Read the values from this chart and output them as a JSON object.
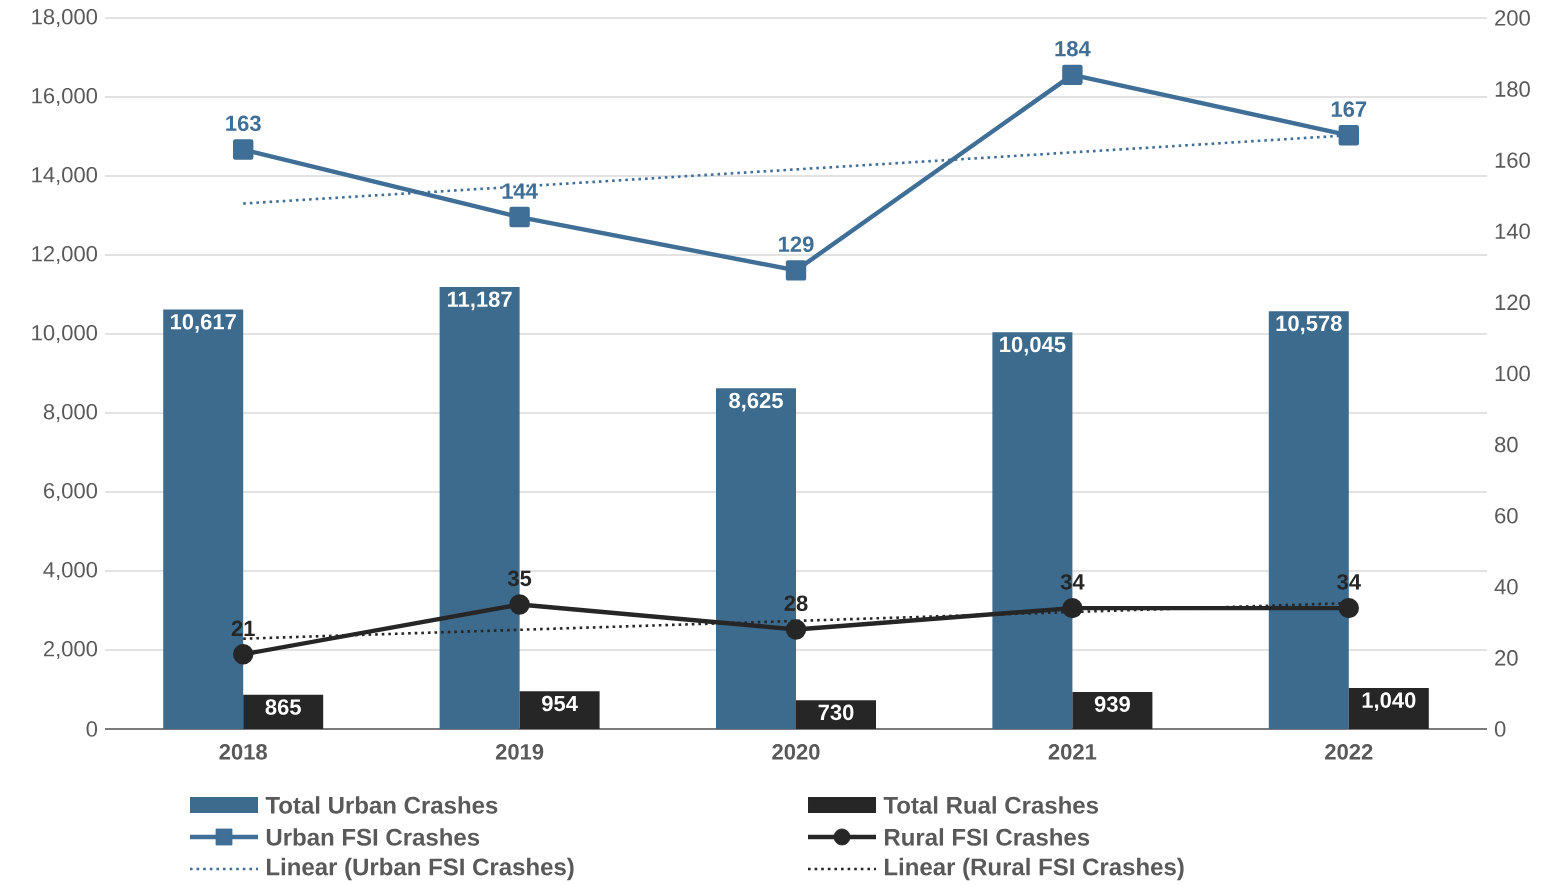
{
  "chart_data": {
    "type": "bar",
    "categories": [
      "2018",
      "2019",
      "2020",
      "2021",
      "2022"
    ],
    "series": [
      {
        "name": "Total Urban Crashes",
        "color": "#3d6b8e",
        "values": [
          10617,
          11187,
          8625,
          10045,
          10578
        ],
        "value_labels": [
          "10,617",
          "11,187",
          "8,625",
          "10,045",
          "10,578"
        ]
      },
      {
        "name": "Total Rual Crashes",
        "color": "#262626",
        "values": [
          865,
          954,
          730,
          939,
          1040
        ],
        "value_labels": [
          "865",
          "954",
          "730",
          "939",
          "1,040"
        ]
      },
      {
        "name": "Urban FSI Crashes",
        "type": "line",
        "axis": "y2",
        "color": "#3f6e96",
        "marker": "square",
        "values": [
          163,
          144,
          129,
          184,
          167
        ],
        "data_labels": true
      },
      {
        "name": "Rural FSI Crashes",
        "type": "line",
        "axis": "y2",
        "color": "#262626",
        "marker": "circle",
        "values": [
          21,
          35,
          28,
          34,
          34
        ],
        "data_labels": true
      },
      {
        "name": "Linear (Urban FSI Crashes)",
        "type": "line",
        "axis": "y2",
        "color": "#3f6e96",
        "marker": "none",
        "line_style": "dotted",
        "values": [
          147.8,
          152.6,
          157.4,
          162.2,
          167
        ]
      },
      {
        "name": "Linear (Rural FSI Crashes)",
        "type": "line",
        "axis": "y2",
        "color": "#262626",
        "marker": "none",
        "line_style": "dotted",
        "values": [
          25.4,
          27.9,
          30.4,
          32.9,
          35.4
        ]
      }
    ],
    "ylim": [
      0,
      18000
    ],
    "yticks": [
      {
        "value": 0,
        "label": "0"
      },
      {
        "value": 2000,
        "label": "2,000"
      },
      {
        "value": 4000,
        "label": "4,000"
      },
      {
        "value": 6000,
        "label": "6,000"
      },
      {
        "value": 8000,
        "label": "8,000"
      },
      {
        "value": 10000,
        "label": "10,000"
      },
      {
        "value": 12000,
        "label": "12,000"
      },
      {
        "value": 14000,
        "label": "14,000"
      },
      {
        "value": 16000,
        "label": "16,000"
      },
      {
        "value": 18000,
        "label": "18,000"
      }
    ],
    "y2lim": [
      0,
      200
    ],
    "y2ticks": [
      0,
      20,
      40,
      60,
      80,
      100,
      120,
      140,
      160,
      180,
      200
    ],
    "grid": "y",
    "legend": "bottom"
  }
}
